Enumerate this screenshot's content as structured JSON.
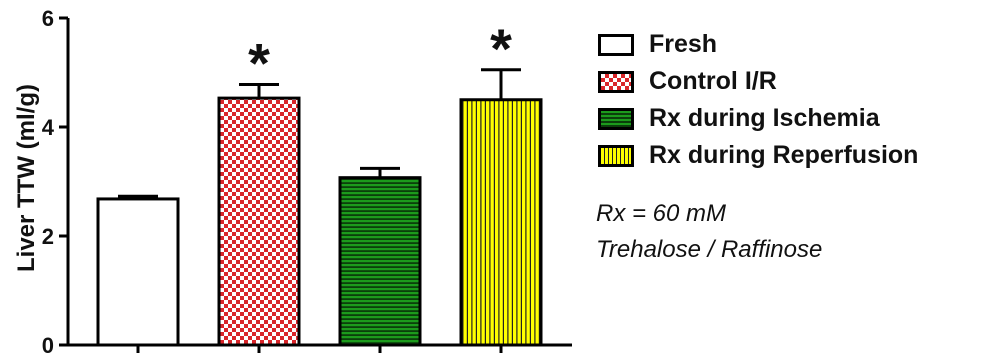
{
  "chart_data": {
    "type": "bar",
    "ylabel": "Liver TTW (ml/g)",
    "xlabel": "",
    "ylim": [
      0,
      6
    ],
    "yticks": [
      "0",
      "2",
      "4",
      "6"
    ],
    "categories": [
      "Fresh",
      "Control I/R",
      "Rx during Ischemia",
      "Rx during Reperfusion"
    ],
    "values": [
      2.68,
      4.53,
      3.07,
      4.5
    ],
    "errors": [
      0.05,
      0.25,
      0.17,
      0.55
    ],
    "significance": [
      "",
      "*",
      "",
      "*"
    ],
    "legend_position": "right",
    "colors": {
      "fresh": "#ffffff",
      "control": "#d9262a",
      "ischemia": "#1c9b1c",
      "reperfusion": "#ffff00",
      "outline": "#000000"
    }
  },
  "legend": [
    {
      "label": "Fresh",
      "swatch": "fresh"
    },
    {
      "label": "Control I/R",
      "swatch": "control"
    },
    {
      "label": "Rx during Ischemia",
      "swatch": "ischemia"
    },
    {
      "label": "Rx during Reperfusion",
      "swatch": "reperfusion"
    }
  ],
  "note": {
    "line1": "Rx = 60 mM",
    "line2": "Trehalose / Raffinose"
  }
}
